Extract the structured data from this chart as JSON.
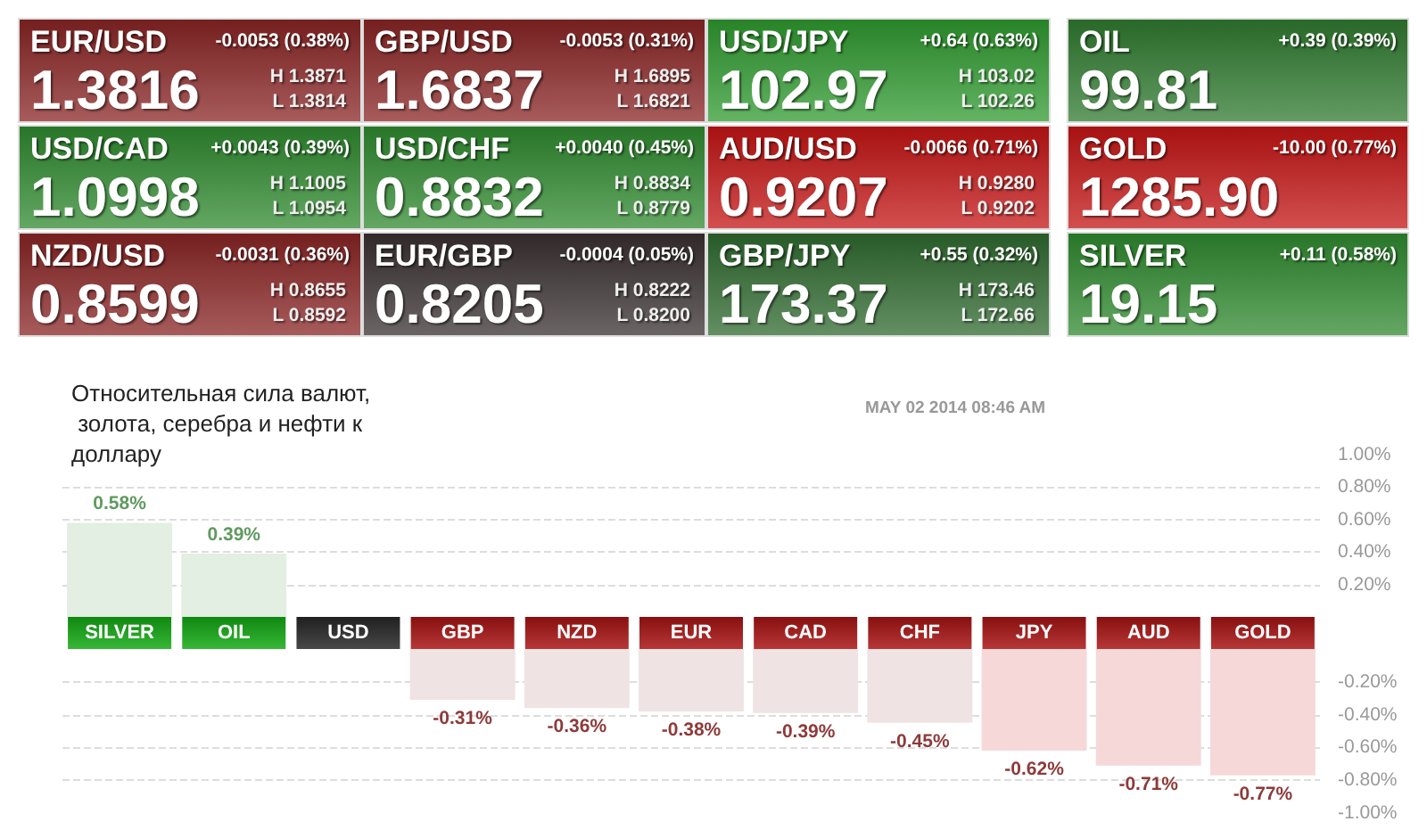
{
  "chart_data": [
    {
      "type": "other",
      "annotations": [
        "EUR/USD\n-0.0053 (0.38%)\n1.3816\nH 1.3871\nL 1.3814",
        "GBP/USD\n-0.0053 (0.31%)\n1.6837\nH 1.6895\nL 1.6821",
        "USD/JPY\n+0.64 (0.63%)\n102.97\nH 103.02\nL 102.26",
        "OIL\n+0.39 (0.39%)\n99.81",
        "USD/CAD\n+0.0043 (0.39%)\n1.0998\nH 1.1005\nL 1.0954",
        "USD/CHF\n+0.0040 (0.45%)\n0.8832\nH 0.8834\nL 0.8779",
        "AUD/USD\n-0.0066 (0.71%)\n0.9207\nH 0.9280\nL 0.9202",
        "GOLD\n-10.00 (0.77%)\n1285.90",
        "NZD/USD\n-0.0031 (0.36%)\n0.8599\nH 0.8655\nL 0.8592",
        "EUR/GBP\n-0.0004 (0.05%)\n0.8205\nH 0.8222\nL 0.8200",
        "GBP/JPY\n+0.55 (0.32%)\n173.37\nH 173.46\nL 172.66",
        "SILVER\n+0.11 (0.58%)\n19.15"
      ],
      "colors": [
        "#8a2424",
        "#8a2424",
        "#2f9a2f",
        "#2f7a2f",
        "#2f8a2f",
        "#2f8a2f",
        "#c41414",
        "#c41414",
        "#8a2424",
        "#3a3030",
        "#2f6a2f",
        "#2f8a2f"
      ]
    },
    {
      "type": "bar",
      "title": "Относительная сила валют, золота, серебра и нефти к доллару",
      "subtitle": "MAY 02 2014 08:46 AM",
      "categories": [
        "SILVER",
        "OIL",
        "USD",
        "GBP",
        "NZD",
        "EUR",
        "CAD",
        "CHF",
        "JPY",
        "AUD",
        "GOLD"
      ],
      "values": [
        0.58,
        0.39,
        0,
        null,
        null,
        null,
        null,
        null,
        null,
        null,
        null
      ],
      "colors": [
        "#e2efe2",
        "#e2efe2",
        "#e0e0e0",
        "#efe3e3",
        "#efe3e3",
        "#efe3e3",
        "#efe3e3",
        "#efe3e3",
        "#f6d8d8",
        "#f6d8d8",
        "#f6d8d8"
      ],
      "value_labels": [
        "0.58%",
        "0.39%",
        null,
        null,
        null,
        null,
        null,
        null,
        null,
        null,
        null
      ],
      "ylim": [
        0,
        1
      ],
      "yticks": [
        {
          "value": 1,
          "label": "1.00%"
        },
        {
          "value": 0.8,
          "label": "0.80%"
        },
        {
          "value": 0.6,
          "label": "0.60%"
        },
        {
          "value": 0.4,
          "label": "0.40%"
        },
        {
          "value": 0.2,
          "label": "0.20%"
        }
      ],
      "grid": "y"
    },
    {
      "type": "bar",
      "categories": [
        null,
        null,
        null,
        null,
        null,
        null,
        null,
        null,
        null,
        null,
        null
      ],
      "values": [
        null,
        null,
        null,
        -0.31,
        -0.36,
        -0.38,
        -0.39,
        -0.45,
        -0.62,
        -0.71,
        -0.77
      ],
      "colors": [
        "#e2efe2",
        "#e2efe2",
        "#e0e0e0",
        "#efe3e3",
        "#efe3e3",
        "#efe3e3",
        "#efe3e3",
        "#efe3e3",
        "#f6d8d8",
        "#f6d8d8",
        "#f6d8d8"
      ],
      "value_labels": [
        null,
        null,
        null,
        "-0.31%",
        "-0.36%",
        "-0.38%",
        "-0.39%",
        "-0.45%",
        "-0.62%",
        "-0.71%",
        "-0.77%"
      ],
      "ylim": [
        -1,
        0
      ],
      "yticks": [
        {
          "value": -0.2,
          "label": "-0.20%"
        },
        {
          "value": -0.4,
          "label": "-0.40%"
        },
        {
          "value": -0.6,
          "label": "-0.60%"
        },
        {
          "value": -0.8,
          "label": "-0.80%"
        },
        {
          "value": -1,
          "label": "-1.00%"
        }
      ],
      "grid": "y",
      "tick_labels": "y"
    }
  ]
}
